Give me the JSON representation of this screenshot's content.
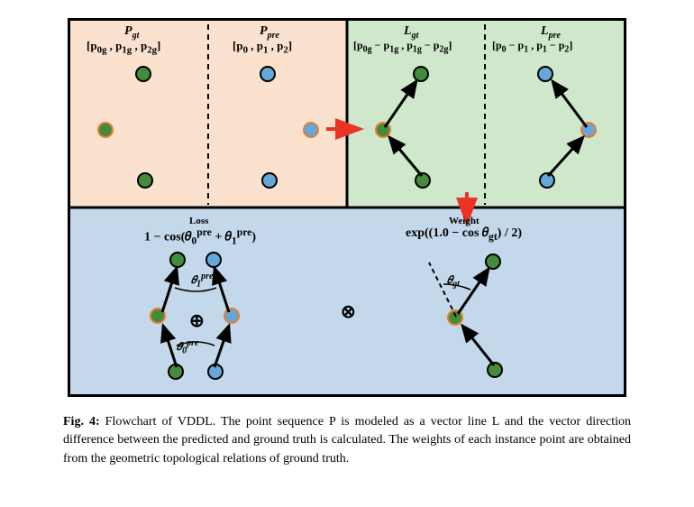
{
  "colors": {
    "bg_peach": "#fbe2cf",
    "bg_green": "#cfe8cb",
    "bg_blue": "#c3d8ea",
    "green_dot": "#438b3d",
    "blue_dot": "#65a7d8",
    "arrow_red": "#ea3323",
    "arrow_black": "#000000",
    "border": "#000000"
  },
  "headers": {
    "pgt": "P",
    "pgt_sub": "gt",
    "pgt_list": "[p<sub>0g</sub> , p<sub>1g</sub> , p<sub>2g</sub>]",
    "ppre": "P",
    "ppre_sub": "pre",
    "ppre_list": "[p<sub>0</sub> , p<sub>1</sub> , p<sub>2</sub>]",
    "lgt": "L",
    "lgt_sub": "gt",
    "lgt_list": "[p<sub>0g</sub> − p<sub>1g</sub> , p<sub>1g</sub> − p<sub>2g</sub>]",
    "lpre": "L",
    "lpre_sub": "pre",
    "lpre_list": "[p<sub>0</sub> − p<sub>1</sub> , p<sub>1</sub> − p<sub>2</sub>]",
    "loss_title": "Loss",
    "loss_formula": "1 − cos(𝜃<sub>0</sub><sup>pre</sup> + 𝜃<sub>1</sub><sup>pre</sup>)",
    "weight_title": "Weight",
    "weight_formula": "exp((1.0 − cos 𝜃<sub>gt</sub>) / 2)"
  },
  "symbols": {
    "oplus": "⊕",
    "otimes": "⊗",
    "theta0": "𝜃<sub>0</sub><sup>pre</sup>",
    "theta1": "𝜃<sub>1</sub><sup>pre</sup>",
    "thetagt": "𝜃<sub>gt</sub>"
  },
  "caption": {
    "label": "Fig. 4:",
    "text": " Flowchart of VDDL. The point sequence P is modeled as a vector line L and the vector direction difference between the predicted and ground truth is calculated. The weights of each instance point are obtained from the geometric topological relations of ground truth."
  },
  "dot_radius": 9,
  "dot_border": "#000000",
  "hl_border": "#ed7d31"
}
